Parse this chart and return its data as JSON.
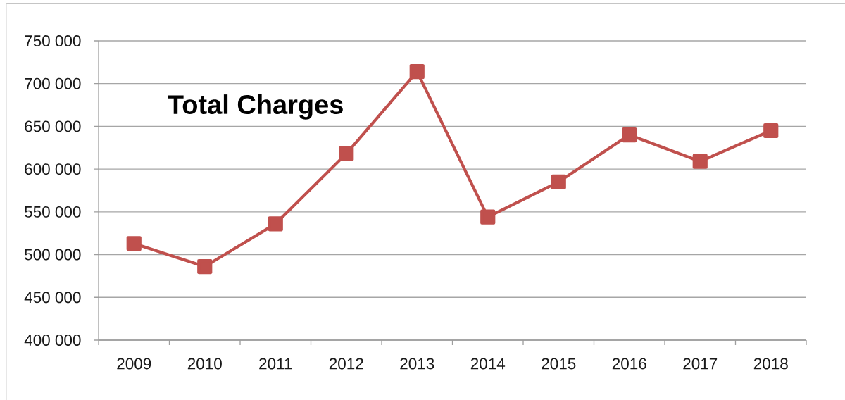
{
  "chart_data": {
    "type": "line",
    "title": "Total Charges",
    "categories": [
      "2009",
      "2010",
      "2011",
      "2012",
      "2013",
      "2014",
      "2015",
      "2016",
      "2017",
      "2018"
    ],
    "series": [
      {
        "color": "#c0504d",
        "values": [
          513000,
          486000,
          536000,
          618000,
          714000,
          544000,
          585000,
          640000,
          609000,
          645000
        ]
      }
    ],
    "ylim": [
      400000,
      750000
    ],
    "yticks": [
      {
        "value": 400000,
        "label": "400 000"
      },
      {
        "value": 450000,
        "label": "450 000"
      },
      {
        "value": 500000,
        "label": "500 000"
      },
      {
        "value": 550000,
        "label": "550 000"
      },
      {
        "value": 600000,
        "label": "600 000"
      },
      {
        "value": 650000,
        "label": "650 000"
      },
      {
        "value": 700000,
        "label": "700 000"
      },
      {
        "value": 750000,
        "label": "750 000"
      }
    ],
    "grid": "y",
    "marker": "square",
    "line_style": "solid"
  }
}
